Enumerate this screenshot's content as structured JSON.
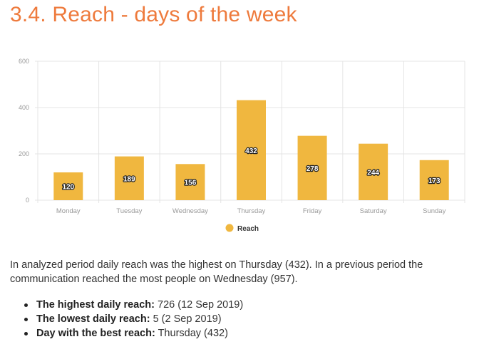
{
  "page": {
    "title": "3.4. Reach - days of the week",
    "summary": "In analyzed period daily reach was the highest on Thursday (432). In a previous period the communication reached the most people on Wednesday (957).",
    "facts": [
      {
        "label": "The highest daily reach:",
        "value": "726 (12 Sep 2019)"
      },
      {
        "label": "The lowest daily reach:",
        "value": "5 (2 Sep 2019)"
      },
      {
        "label": "Day with the best reach:",
        "value": "Thursday (432)"
      }
    ]
  },
  "chart_data": {
    "type": "bar",
    "categories": [
      "Monday",
      "Tuesday",
      "Wednesday",
      "Thursday",
      "Friday",
      "Saturday",
      "Sunday"
    ],
    "series": [
      {
        "name": "Reach",
        "values": [
          120,
          189,
          156,
          432,
          278,
          244,
          173
        ]
      }
    ],
    "yticks": [
      0,
      200,
      400,
      600
    ],
    "ylim": [
      0,
      600
    ],
    "grid": true,
    "legend_position": "bottom",
    "colors": {
      "bar": "#f0b73f",
      "grid": "#e4e4e4",
      "axis_text": "#999999"
    }
  }
}
